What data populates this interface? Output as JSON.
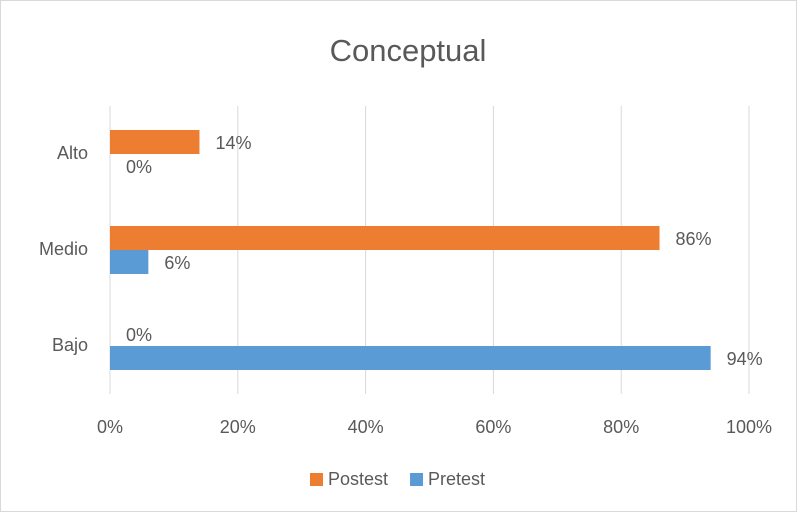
{
  "chart_data": {
    "type": "barh",
    "title": "Conceptual",
    "categories": [
      "Alto",
      "Medio",
      "Bajo"
    ],
    "series": [
      {
        "name": "Postest",
        "color": "#ED7D31",
        "values": [
          14,
          86,
          0
        ],
        "value_labels": [
          "14%",
          "86%",
          "0%"
        ]
      },
      {
        "name": "Pretest",
        "color": "#5B9BD5",
        "values": [
          0,
          6,
          94
        ],
        "value_labels": [
          "0%",
          "6%",
          "94%"
        ]
      }
    ],
    "xlim": [
      0,
      100
    ],
    "xticks": [
      {
        "value": 0,
        "label": "0%"
      },
      {
        "value": 20,
        "label": "20%"
      },
      {
        "value": 40,
        "label": "40%"
      },
      {
        "value": 60,
        "label": "60%"
      },
      {
        "value": 80,
        "label": "80%"
      },
      {
        "value": 100,
        "label": "100%"
      }
    ],
    "grid": true,
    "legend": "bottom"
  }
}
